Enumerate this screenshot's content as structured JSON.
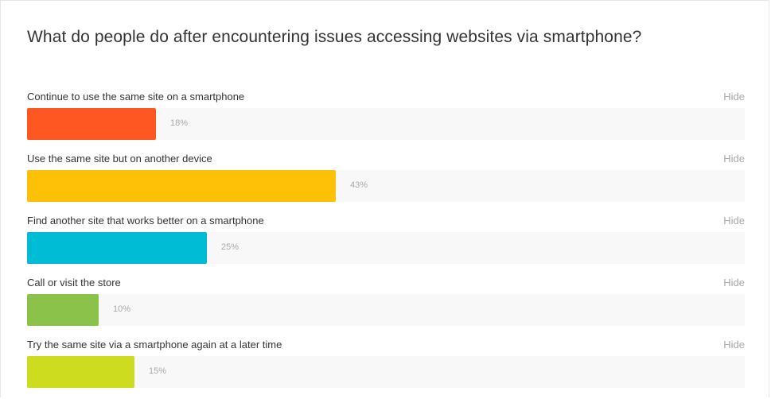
{
  "card": {
    "title": "What do people do after encountering issues accessing websites via smartphone?"
  },
  "hide_label": "Hide",
  "chart_data": {
    "type": "bar",
    "orientation": "horizontal",
    "title": "What do people do after encountering issues accessing websites via smartphone?",
    "xlim": [
      0,
      100
    ],
    "grid": false,
    "legend": "none",
    "categories": [
      "Continue to use the same site on a smartphone",
      "Use the same site but on another device",
      "Find another site that works better on a smartphone",
      "Call or visit the store",
      "Try the same site via a smartphone again at a later time"
    ],
    "values": [
      18,
      43,
      25,
      10,
      15
    ],
    "value_labels": [
      "18%",
      "43%",
      "25%",
      "10%",
      "15%"
    ],
    "colors": [
      "#ff5722",
      "#ffc107",
      "#00bcd4",
      "#8bc34a",
      "#cddc1f"
    ]
  }
}
